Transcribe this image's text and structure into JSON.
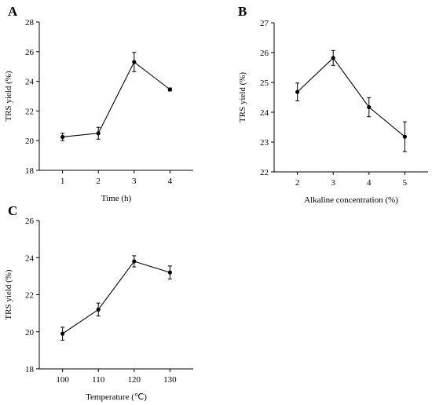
{
  "chart_data": [
    {
      "panel": "A",
      "type": "line",
      "xlabel": "Time (h)",
      "ylabel": "TRS yield (%)",
      "x": [
        1,
        2,
        3,
        4
      ],
      "xticks": [
        "1",
        "2",
        "3",
        "4"
      ],
      "xlim": [
        0.35,
        4.65
      ],
      "ylim": [
        18,
        28
      ],
      "yticks": [
        "18",
        "20",
        "22",
        "24",
        "26",
        "28"
      ],
      "series": [
        {
          "values": [
            20.25,
            20.5,
            25.3,
            23.45
          ],
          "errors": [
            0.25,
            0.4,
            0.65,
            0.1
          ]
        }
      ],
      "grid": false
    },
    {
      "panel": "B",
      "type": "line",
      "xlabel": "Alkaline concentration (%)",
      "ylabel": "TRS yield (%)",
      "x": [
        2,
        3,
        4,
        5
      ],
      "xticks": [
        "2",
        "3",
        "4",
        "5"
      ],
      "xlim": [
        1.35,
        5.65
      ],
      "ylim": [
        22,
        27
      ],
      "yticks": [
        "22",
        "23",
        "24",
        "25",
        "26",
        "27"
      ],
      "series": [
        {
          "values": [
            24.68,
            25.82,
            24.17,
            23.18
          ],
          "errors": [
            0.3,
            0.25,
            0.32,
            0.5
          ]
        }
      ],
      "grid": false
    },
    {
      "panel": "C",
      "type": "line",
      "xlabel": "Temperature (℃)",
      "ylabel": "TRS yield (%)",
      "x": [
        100,
        110,
        120,
        130
      ],
      "xticks": [
        "100",
        "110",
        "120",
        "130"
      ],
      "xlim": [
        93.5,
        136.5
      ],
      "ylim": [
        18,
        26
      ],
      "yticks": [
        "18",
        "20",
        "22",
        "24",
        "26"
      ],
      "series": [
        {
          "values": [
            19.9,
            21.2,
            23.8,
            23.2
          ],
          "errors": [
            0.35,
            0.35,
            0.3,
            0.35
          ]
        }
      ],
      "grid": false
    }
  ]
}
